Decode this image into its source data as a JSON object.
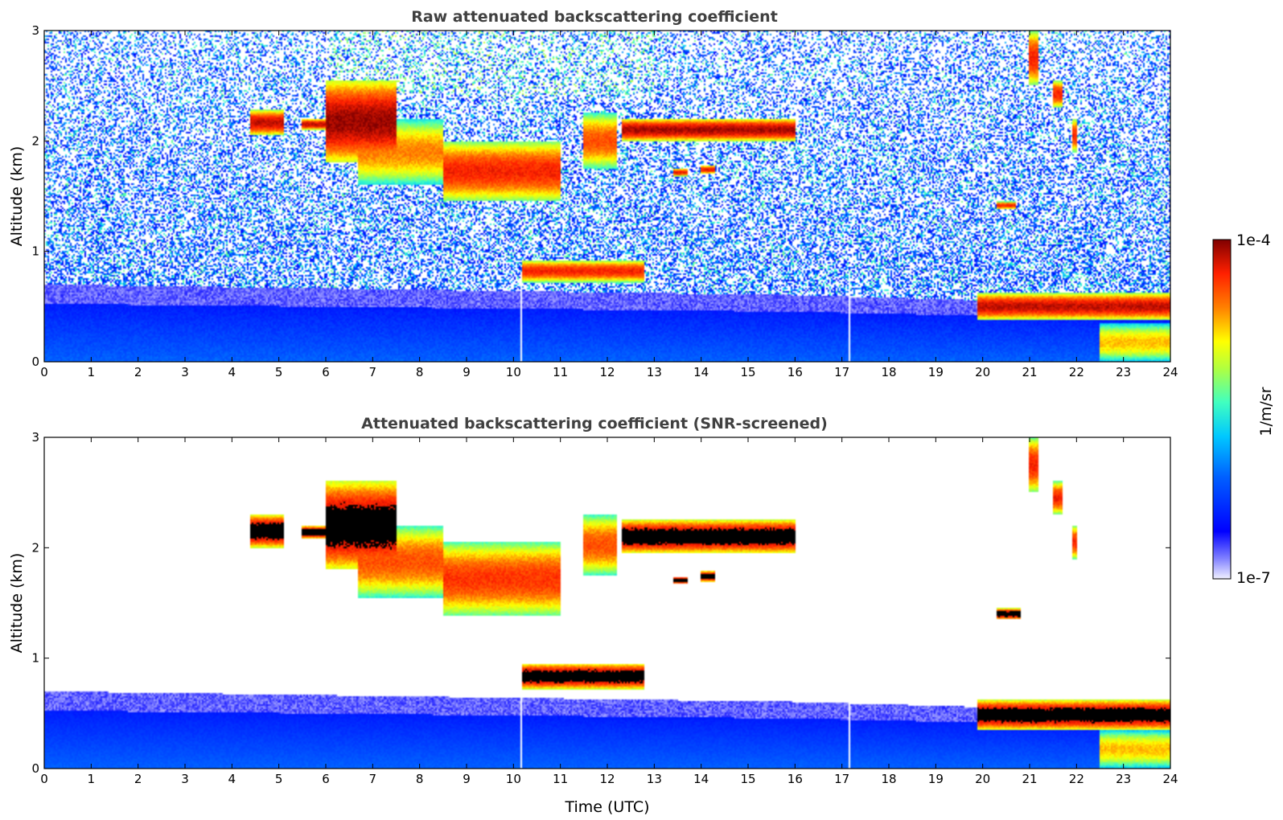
{
  "chart_data": [
    {
      "type": "heatmap",
      "title": "Raw attenuated backscattering coefficient",
      "xlabel": "",
      "ylabel": "Altitude (km)",
      "xlim": [
        0,
        24
      ],
      "ylim": [
        0,
        3
      ],
      "xticks": [
        "0",
        "1",
        "2",
        "3",
        "4",
        "5",
        "6",
        "7",
        "8",
        "9",
        "10",
        "11",
        "12",
        "13",
        "14",
        "15",
        "16",
        "17",
        "18",
        "19",
        "20",
        "21",
        "22",
        "23",
        "24"
      ],
      "yticks": [
        "0",
        "1",
        "2",
        "3"
      ],
      "noise": {
        "strength": 1.0
      },
      "features": [
        {
          "x": [
            4.4,
            5.1
          ],
          "y": [
            2.05,
            2.28
          ],
          "level": 0.95
        },
        {
          "x": [
            5.5,
            6.0
          ],
          "y": [
            2.1,
            2.2
          ],
          "level": 0.95
        },
        {
          "x": [
            6.0,
            7.5
          ],
          "y": [
            1.8,
            2.55
          ],
          "level": 0.98
        },
        {
          "x": [
            6.7,
            8.5
          ],
          "y": [
            1.6,
            2.2
          ],
          "level": 0.8
        },
        {
          "x": [
            8.5,
            11.0
          ],
          "y": [
            1.45,
            2.0
          ],
          "level": 0.9
        },
        {
          "x": [
            9.5,
            11.0
          ],
          "y": [
            1.5,
            1.9
          ],
          "level": 0.75
        },
        {
          "x": [
            11.5,
            12.2
          ],
          "y": [
            1.75,
            2.25
          ],
          "level": 0.85
        },
        {
          "x": [
            12.3,
            16.0
          ],
          "y": [
            2.0,
            2.2
          ],
          "level": 0.97
        },
        {
          "x": [
            13.4,
            13.7
          ],
          "y": [
            1.68,
            1.75
          ],
          "level": 0.92
        },
        {
          "x": [
            14.0,
            14.3
          ],
          "y": [
            1.7,
            1.78
          ],
          "level": 0.92
        },
        {
          "x": [
            10.2,
            12.8
          ],
          "y": [
            0.72,
            0.92
          ],
          "level": 0.9
        },
        {
          "x": [
            20.3,
            20.7
          ],
          "y": [
            1.38,
            1.45
          ],
          "level": 0.9
        },
        {
          "x": [
            21.0,
            21.2
          ],
          "y": [
            2.5,
            3.0
          ],
          "level": 0.9
        },
        {
          "x": [
            21.5,
            21.7
          ],
          "y": [
            2.3,
            2.55
          ],
          "level": 0.9
        },
        {
          "x": [
            21.9,
            22.0
          ],
          "y": [
            1.9,
            2.2
          ],
          "level": 0.9
        },
        {
          "x": [
            19.9,
            24.0
          ],
          "y": [
            0.38,
            0.62
          ],
          "level": 0.95
        },
        {
          "x": [
            22.5,
            24.0
          ],
          "y": [
            0.0,
            0.35
          ],
          "level": 0.75
        }
      ],
      "colorbar": {
        "min_label": "1e-7",
        "max_label": "1e-4",
        "label": "1/m/sr"
      }
    },
    {
      "type": "heatmap",
      "title": "Attenuated backscattering coefficient (SNR-screened)",
      "xlabel": "Time (UTC)",
      "ylabel": "Altitude (km)",
      "xlim": [
        0,
        24
      ],
      "ylim": [
        0,
        3
      ],
      "xticks": [
        "0",
        "1",
        "2",
        "3",
        "4",
        "5",
        "6",
        "7",
        "8",
        "9",
        "10",
        "11",
        "12",
        "13",
        "14",
        "15",
        "16",
        "17",
        "18",
        "19",
        "20",
        "21",
        "22",
        "23",
        "24"
      ],
      "yticks": [
        "0",
        "1",
        "2",
        "3"
      ],
      "noise": {
        "strength": 0.0
      },
      "features": [
        {
          "x": [
            4.4,
            5.1
          ],
          "y": [
            2.0,
            2.3
          ],
          "level": 1.0
        },
        {
          "x": [
            5.5,
            6.0
          ],
          "y": [
            2.08,
            2.2
          ],
          "level": 1.0
        },
        {
          "x": [
            6.0,
            7.5
          ],
          "y": [
            1.8,
            2.6
          ],
          "level": 1.0
        },
        {
          "x": [
            6.7,
            8.5
          ],
          "y": [
            1.55,
            2.2
          ],
          "level": 0.85
        },
        {
          "x": [
            8.5,
            11.0
          ],
          "y": [
            1.38,
            2.05
          ],
          "level": 0.88
        },
        {
          "x": [
            11.5,
            12.2
          ],
          "y": [
            1.75,
            2.3
          ],
          "level": 0.85
        },
        {
          "x": [
            12.3,
            16.0
          ],
          "y": [
            1.95,
            2.25
          ],
          "level": 1.0
        },
        {
          "x": [
            13.4,
            13.7
          ],
          "y": [
            1.67,
            1.74
          ],
          "level": 1.0
        },
        {
          "x": [
            14.0,
            14.3
          ],
          "y": [
            1.69,
            1.79
          ],
          "level": 1.0
        },
        {
          "x": [
            10.2,
            12.8
          ],
          "y": [
            0.72,
            0.95
          ],
          "level": 1.0
        },
        {
          "x": [
            20.3,
            20.8
          ],
          "y": [
            1.35,
            1.45
          ],
          "level": 1.0
        },
        {
          "x": [
            21.0,
            21.2
          ],
          "y": [
            2.5,
            3.0
          ],
          "level": 0.9
        },
        {
          "x": [
            21.5,
            21.7
          ],
          "y": [
            2.3,
            2.6
          ],
          "level": 0.9
        },
        {
          "x": [
            21.9,
            22.0
          ],
          "y": [
            1.9,
            2.2
          ],
          "level": 0.9
        },
        {
          "x": [
            19.9,
            24.0
          ],
          "y": [
            0.35,
            0.62
          ],
          "level": 1.0
        },
        {
          "x": [
            22.5,
            24.0
          ],
          "y": [
            0.0,
            0.35
          ],
          "level": 0.75
        }
      ],
      "colorbar": {
        "min_label": "1e-7",
        "max_label": "1e-4",
        "label": "1/m/sr"
      }
    }
  ]
}
